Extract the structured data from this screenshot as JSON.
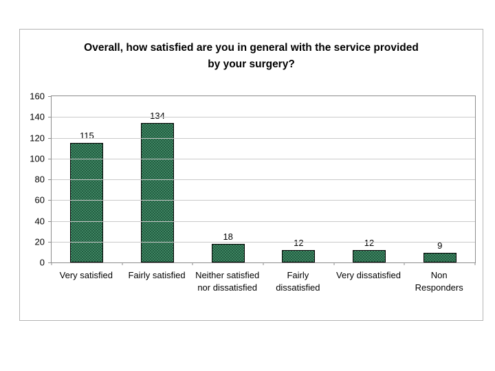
{
  "page": {
    "background": "#ffffff",
    "title_lines": [
      "Overall, how satisfied are you in general with the service provided",
      "by your surgery?"
    ]
  },
  "chart_data": {
    "type": "bar",
    "title": "Overall, how satisfied are you in general with the service provided by your surgery?",
    "categories": [
      "Very satisfied",
      "Fairly satisfied",
      "Neither satisfied nor dissatisfied",
      "Fairly dissatisfied",
      "Very dissatisfied",
      "Non Responders"
    ],
    "values": [
      115,
      134,
      18,
      12,
      12,
      9
    ],
    "data_labels": [
      "115",
      "134",
      "18",
      "12",
      "12",
      "9"
    ],
    "xlabel": "",
    "ylabel": "",
    "ylim": [
      0,
      160
    ],
    "yticks": [
      0,
      20,
      40,
      60,
      80,
      100,
      120,
      140,
      160
    ],
    "grid": "horizontal",
    "legend": "none",
    "colors": {
      "bar_fill_dark": "#235c41",
      "bar_fill_light": "#3e8662",
      "bar_border": "#000000",
      "gridline": "#c9c9c9",
      "axis": "#8c8c8c",
      "chart_border": "#b3b3b3",
      "text": "#000000",
      "background": "#ffffff"
    }
  }
}
